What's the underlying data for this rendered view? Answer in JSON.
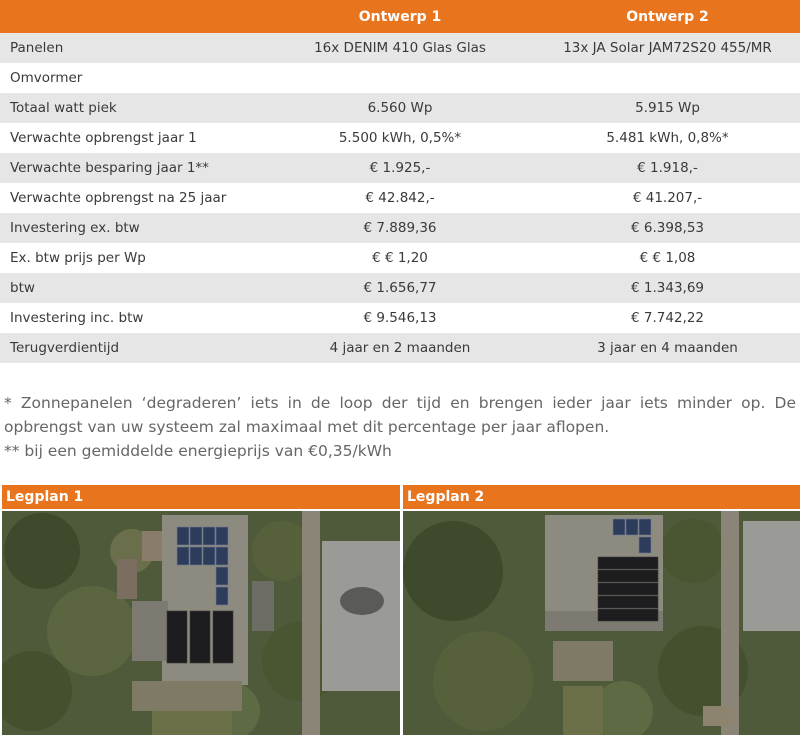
{
  "table": {
    "columns": [
      "",
      "Ontwerp 1",
      "Ontwerp 2"
    ],
    "rows": [
      {
        "label": "Panelen",
        "o1": "16x DENIM 410 Glas Glas",
        "o2": "13x JA Solar JAM72S20 455/MR"
      },
      {
        "label": "Omvormer",
        "o1": "",
        "o2": ""
      },
      {
        "label": "Totaal watt piek",
        "o1": "6.560 Wp",
        "o2": "5.915 Wp"
      },
      {
        "label": "Verwachte opbrengst jaar 1",
        "o1": "5.500 kWh, 0,5%*",
        "o2": "5.481 kWh, 0,8%*"
      },
      {
        "label": "Verwachte besparing jaar 1**",
        "o1": "€ 1.925,-",
        "o2": "€ 1.918,-"
      },
      {
        "label": "Verwachte opbrengst na 25 jaar",
        "o1": "€ 42.842,-",
        "o2": "€ 41.207,-"
      },
      {
        "label": "Investering ex. btw",
        "o1": "€ 7.889,36",
        "o2": "€ 6.398,53"
      },
      {
        "label": "Ex. btw prijs per Wp",
        "o1": "€ € 1,20",
        "o2": "€ € 1,08"
      },
      {
        "label": "btw",
        "o1": "€ 1.656,77",
        "o2": "€ 1.343,69"
      },
      {
        "label": "Investering inc. btw",
        "o1": "€ 9.546,13",
        "o2": "€ 7.742,22"
      },
      {
        "label": "Terugverdientijd",
        "o1": "4 jaar en 2 maanden",
        "o2": "3 jaar en 4 maanden"
      }
    ]
  },
  "notes": {
    "note1": "* Zonnepanelen ‘degraderen’ iets in de loop der tijd en brengen ieder jaar iets minder op. De opbrengst van uw systeem zal maximaal met dit percentage per jaar aflopen.",
    "note2": "** bij een gemiddelde energieprijs van €0,35/kWh"
  },
  "plans": [
    {
      "title": "Legplan 1"
    },
    {
      "title": "Legplan 2"
    }
  ],
  "colors": {
    "accent": "#e8741e",
    "row_shade": "#e6e6e6",
    "panel_blue": "#2e3c5c",
    "panel_black": "#1d1d1f"
  }
}
